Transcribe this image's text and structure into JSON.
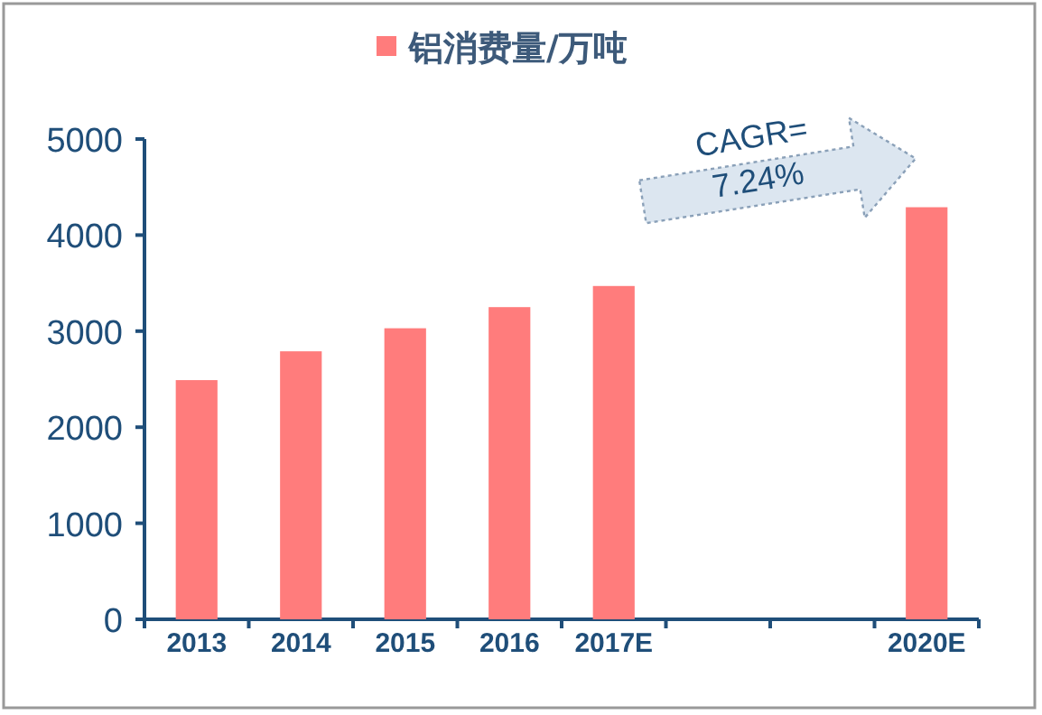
{
  "chart_data": {
    "type": "bar",
    "categories": [
      "2013",
      "2014",
      "2015",
      "2016",
      "2017E",
      null,
      null,
      "2020E"
    ],
    "series": [
      {
        "name": "铝消费量/万吨",
        "color": "#ff7c7c",
        "values": [
          2490,
          2790,
          3030,
          3250,
          3470,
          null,
          null,
          4290
        ]
      }
    ],
    "ylim": [
      0,
      5000
    ],
    "yticks": [
      0,
      1000,
      2000,
      3000,
      4000,
      5000
    ],
    "legend": "top",
    "annotations": [
      "CAGR=",
      "7.24%"
    ]
  }
}
